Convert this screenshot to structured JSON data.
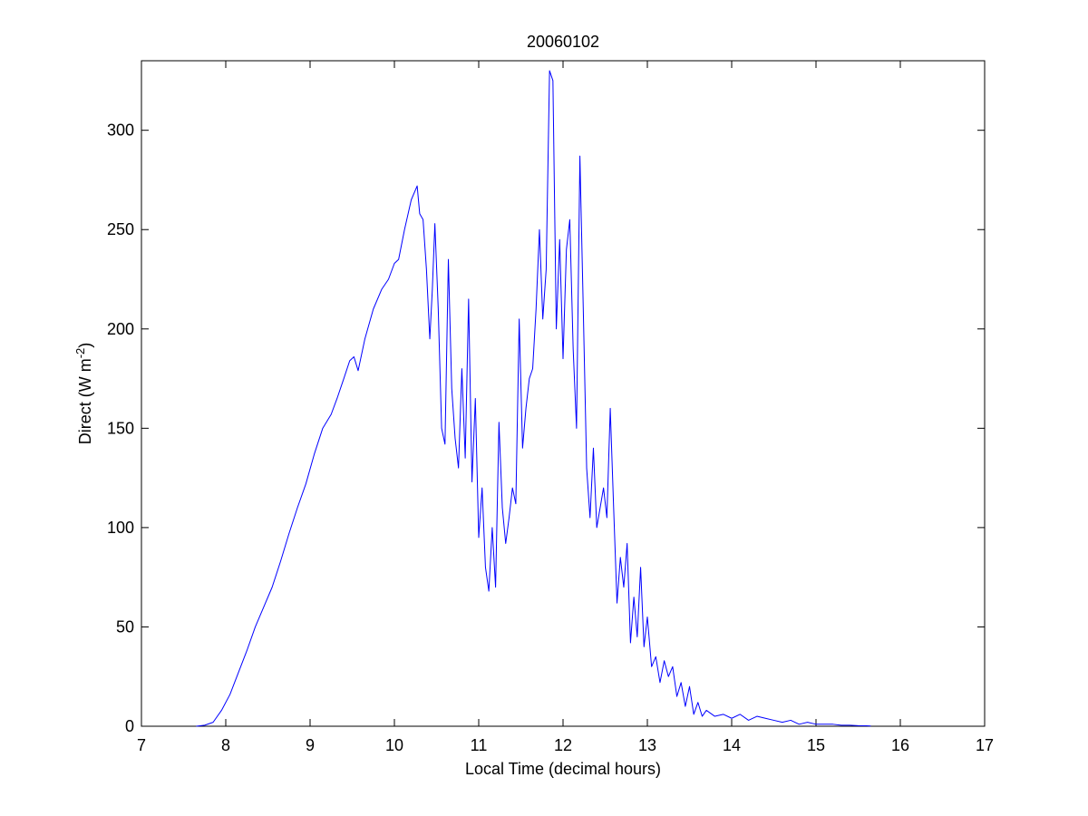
{
  "chart_data": {
    "type": "line",
    "title": "20060102",
    "xlabel": "Local Time (decimal hours)",
    "ylabel": {
      "prefix": "Direct (W m",
      "superscript": "-2",
      "suffix": ")"
    },
    "xlim": [
      7,
      17
    ],
    "ylim": [
      0,
      335
    ],
    "xticks": [
      7,
      8,
      9,
      10,
      11,
      12,
      13,
      14,
      15,
      16,
      17
    ],
    "yticks": [
      0,
      50,
      100,
      150,
      200,
      250,
      300
    ],
    "grid": false,
    "legend": "none",
    "series": [
      {
        "color": "#0000ff",
        "x": [
          7.65,
          7.75,
          7.85,
          7.95,
          8.05,
          8.15,
          8.25,
          8.35,
          8.45,
          8.55,
          8.65,
          8.75,
          8.85,
          8.95,
          9.05,
          9.15,
          9.25,
          9.32,
          9.4,
          9.47,
          9.52,
          9.57,
          9.65,
          9.75,
          9.85,
          9.93,
          10.0,
          10.05,
          10.12,
          10.2,
          10.27,
          10.3,
          10.34,
          10.38,
          10.42,
          10.45,
          10.48,
          10.52,
          10.56,
          10.6,
          10.64,
          10.68,
          10.72,
          10.76,
          10.8,
          10.84,
          10.88,
          10.92,
          10.96,
          11.0,
          11.04,
          11.08,
          11.12,
          11.16,
          11.2,
          11.24,
          11.28,
          11.32,
          11.36,
          11.4,
          11.44,
          11.48,
          11.52,
          11.56,
          11.6,
          11.64,
          11.68,
          11.72,
          11.76,
          11.8,
          11.84,
          11.88,
          11.92,
          11.96,
          12.0,
          12.04,
          12.08,
          12.12,
          12.16,
          12.2,
          12.24,
          12.28,
          12.32,
          12.36,
          12.4,
          12.44,
          12.48,
          12.52,
          12.56,
          12.6,
          12.64,
          12.68,
          12.72,
          12.76,
          12.8,
          12.84,
          12.88,
          12.92,
          12.96,
          13.0,
          13.05,
          13.1,
          13.15,
          13.2,
          13.25,
          13.3,
          13.35,
          13.4,
          13.45,
          13.5,
          13.55,
          13.6,
          13.65,
          13.7,
          13.8,
          13.9,
          14.0,
          14.1,
          14.2,
          14.3,
          14.4,
          14.5,
          14.6,
          14.7,
          14.8,
          14.9,
          15.0,
          15.1,
          15.2,
          15.3,
          15.4,
          15.5,
          15.6,
          15.65
        ],
        "y": [
          0,
          0.5,
          2,
          8,
          16,
          27,
          38,
          50,
          60,
          70,
          83,
          97,
          110,
          122,
          137,
          150,
          157,
          165,
          175,
          184,
          186,
          179,
          195,
          210,
          220,
          225,
          233,
          235,
          250,
          265,
          272,
          258,
          255,
          230,
          195,
          220,
          253,
          210,
          150,
          142,
          235,
          170,
          145,
          130,
          180,
          135,
          215,
          123,
          165,
          95,
          120,
          80,
          68,
          100,
          70,
          153,
          110,
          92,
          105,
          120,
          112,
          205,
          140,
          160,
          175,
          180,
          210,
          250,
          205,
          230,
          330,
          325,
          200,
          245,
          185,
          240,
          255,
          190,
          150,
          287,
          210,
          130,
          105,
          140,
          100,
          110,
          120,
          105,
          160,
          110,
          62,
          85,
          70,
          92,
          42,
          65,
          45,
          80,
          40,
          55,
          30,
          35,
          22,
          33,
          25,
          30,
          15,
          22,
          10,
          20,
          6,
          12,
          5,
          8,
          5,
          6,
          4,
          6,
          3,
          5,
          4,
          3,
          2,
          3,
          1,
          2,
          1,
          1,
          1,
          0.5,
          0.5,
          0.3,
          0.2,
          0.1
        ]
      }
    ]
  }
}
